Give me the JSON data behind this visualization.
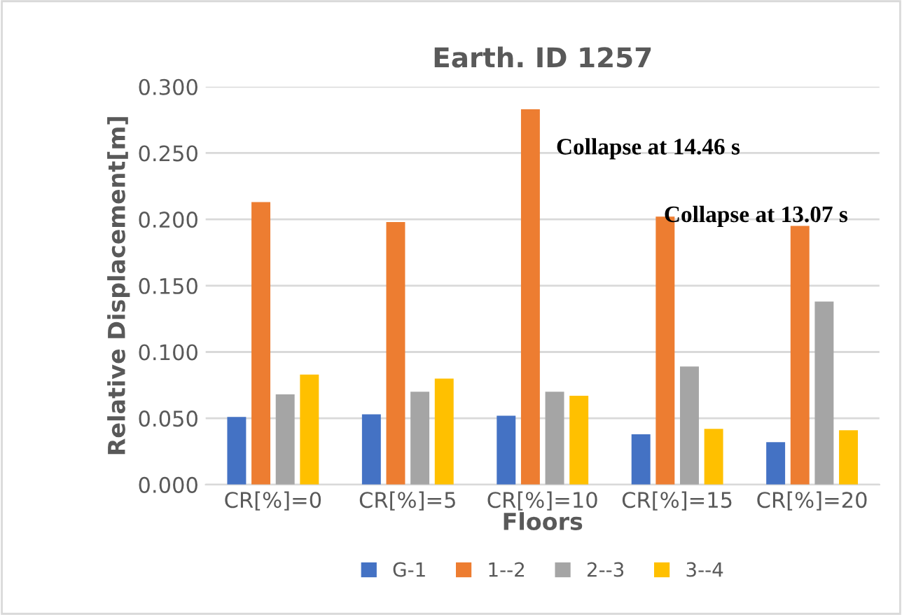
{
  "chart_data": {
    "type": "bar",
    "title": "Earth. ID 1257",
    "xlabel": "Floors",
    "ylabel": "Relative Displacement[m]",
    "categories": [
      "CR[%]=0",
      "CR[%]=5",
      "CR[%]=10",
      "CR[%]=15",
      "CR[%]=20"
    ],
    "series": [
      {
        "name": "G-1",
        "color": "#4472c4",
        "values": [
          0.051,
          0.053,
          0.052,
          0.038,
          0.032
        ]
      },
      {
        "name": "1--2",
        "color": "#ed7d31",
        "values": [
          0.213,
          0.198,
          0.283,
          0.202,
          0.195
        ]
      },
      {
        "name": "2--3",
        "color": "#a5a5a5",
        "values": [
          0.068,
          0.07,
          0.07,
          0.089,
          0.138
        ]
      },
      {
        "name": "3--4",
        "color": "#ffc000",
        "values": [
          0.083,
          0.08,
          0.067,
          0.042,
          0.041
        ]
      }
    ],
    "ylim": [
      0,
      0.3
    ],
    "yticks": [
      {
        "value": 0,
        "label": "0.000"
      },
      {
        "value": 0.05,
        "label": "0.050"
      },
      {
        "value": 0.1,
        "label": "0.100"
      },
      {
        "value": 0.15,
        "label": "0.150"
      },
      {
        "value": 0.2,
        "label": "0.200"
      },
      {
        "value": 0.25,
        "label": "0.250"
      },
      {
        "value": 0.3,
        "label": "0.300"
      }
    ],
    "grid": "y",
    "legend": "bottom",
    "annotations": [
      "Collapse at 14.46 s",
      "Collapse at 13.07 s"
    ]
  }
}
